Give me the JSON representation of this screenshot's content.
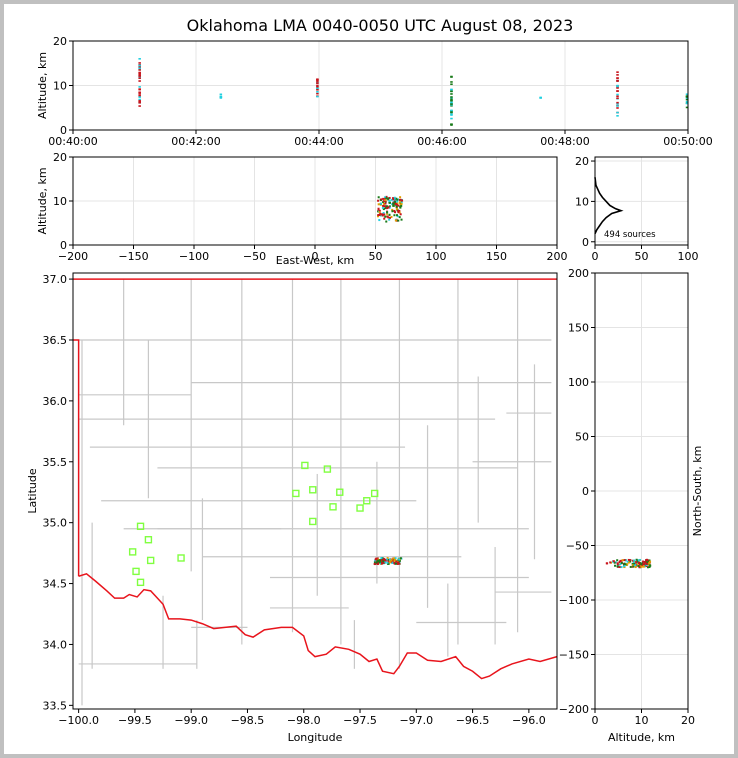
{
  "title": "Oklahoma LMA 0040-0050 UTC August 08, 2023",
  "colors": {
    "state_border": "#e8141c",
    "county_lines": "#c8c8c8",
    "stations": "#80ff40",
    "grid": "#e4e4e4",
    "early": "#20d0e0",
    "mid": "#1a7a1a",
    "late": "#c8141c"
  },
  "chart_data": [
    {
      "id": "time_height",
      "type": "scatter",
      "xlabel": "",
      "ylabel": "Altitude, km",
      "x_ticks": [
        "00:40:00",
        "00:42:00",
        "00:44:00",
        "00:46:00",
        "00:48:00",
        "00:50:00"
      ],
      "xlim_minutes": [
        0,
        10
      ],
      "ylim": [
        0,
        20
      ],
      "y_ticks": [
        0,
        10,
        20
      ],
      "clusters_minutes_altitude": [
        {
          "t": 1.08,
          "alt_range": [
            4,
            16
          ],
          "color": "#c8141c"
        },
        {
          "t": 2.4,
          "alt_range": [
            7,
            8
          ],
          "color": "#20d0e0"
        },
        {
          "t": 3.97,
          "alt_range": [
            7,
            12
          ],
          "color": "#c8141c"
        },
        {
          "t": 6.15,
          "alt_range": [
            1,
            12.5
          ],
          "color": "#1a7a1a"
        },
        {
          "t": 7.6,
          "alt_range": [
            7,
            7.3
          ],
          "color": "#20d0e0"
        },
        {
          "t": 8.85,
          "alt_range": [
            3,
            13
          ],
          "color": "#c8141c"
        },
        {
          "t": 9.98,
          "alt_range": [
            5,
            8
          ],
          "color": "#1a7a1a"
        }
      ]
    },
    {
      "id": "ew_altitude",
      "type": "scatter",
      "xlabel": "East-West, km",
      "ylabel": "Altitude, km",
      "xlim": [
        -200,
        200
      ],
      "x_ticks": [
        -200,
        -150,
        -100,
        -50,
        0,
        50,
        100,
        150,
        200
      ],
      "ylim": [
        0,
        20
      ],
      "y_ticks": [
        0,
        10,
        20
      ],
      "cluster": {
        "x_range": [
          52,
          72
        ],
        "alt_range": [
          5,
          11
        ]
      }
    },
    {
      "id": "altitude_histogram",
      "type": "line",
      "xlim": [
        0,
        100
      ],
      "x_ticks": [
        0,
        50,
        100
      ],
      "ylim": [
        0,
        20
      ],
      "y_ticks": [
        0,
        10,
        20
      ],
      "annotation": "494 sources",
      "profile": [
        [
          0,
          2
        ],
        [
          2,
          3
        ],
        [
          5,
          4
        ],
        [
          8,
          5
        ],
        [
          12,
          6
        ],
        [
          18,
          7
        ],
        [
          28,
          7.7
        ],
        [
          22,
          8.2
        ],
        [
          16,
          9
        ],
        [
          12,
          10
        ],
        [
          8,
          11
        ],
        [
          5,
          12
        ],
        [
          3,
          13
        ],
        [
          1,
          14
        ],
        [
          0,
          16
        ]
      ]
    },
    {
      "id": "map",
      "type": "scatter",
      "xlabel": "Longitude",
      "ylabel": "Latitude",
      "xlim": [
        -100.05,
        -95.75
      ],
      "ylim": [
        33.47,
        37.05
      ],
      "x_ticks": [
        -100.0,
        -99.5,
        -99.0,
        -98.5,
        -98.0,
        -97.5,
        -97.0,
        -96.5,
        -96.0
      ],
      "x_tick_labels": [
        "−100.0",
        "−99.5",
        "−99.0",
        "−98.5",
        "−98.0",
        "−97.5",
        "−97.0",
        "−96.5",
        "−96.0"
      ],
      "y_ticks": [
        33.5,
        34.0,
        34.5,
        35.0,
        35.5,
        36.0,
        36.5,
        37.0
      ],
      "y_tick_labels": [
        "33.5",
        "34.0",
        "34.5",
        "35.0",
        "35.5",
        "36.0",
        "36.5",
        "37.0"
      ],
      "stations": [
        [
          -99.45,
          34.97
        ],
        [
          -99.38,
          34.86
        ],
        [
          -99.52,
          34.76
        ],
        [
          -99.36,
          34.69
        ],
        [
          -99.49,
          34.6
        ],
        [
          -99.45,
          34.51
        ],
        [
          -99.09,
          34.71
        ],
        [
          -97.99,
          35.47
        ],
        [
          -97.79,
          35.44
        ],
        [
          -98.07,
          35.24
        ],
        [
          -97.92,
          35.27
        ],
        [
          -97.68,
          35.25
        ],
        [
          -97.92,
          35.01
        ],
        [
          -97.74,
          35.13
        ],
        [
          -97.5,
          35.12
        ],
        [
          -97.44,
          35.18
        ],
        [
          -97.37,
          35.24
        ]
      ],
      "cluster": {
        "lon_range": [
          -97.37,
          -97.13
        ],
        "lat_range": [
          34.66,
          34.71
        ]
      }
    },
    {
      "id": "altitude_ns",
      "type": "scatter",
      "xlabel": "Altitude, km",
      "ylabel": "North-South, km",
      "xlim": [
        0,
        20
      ],
      "x_ticks": [
        0,
        10,
        20
      ],
      "ylim": [
        -200,
        200
      ],
      "y_ticks": [
        -200,
        -150,
        -100,
        -50,
        0,
        50,
        100,
        150,
        200
      ],
      "cluster": {
        "alt_range": [
          2,
          12
        ],
        "ns_range": [
          -70,
          -63
        ]
      }
    }
  ]
}
